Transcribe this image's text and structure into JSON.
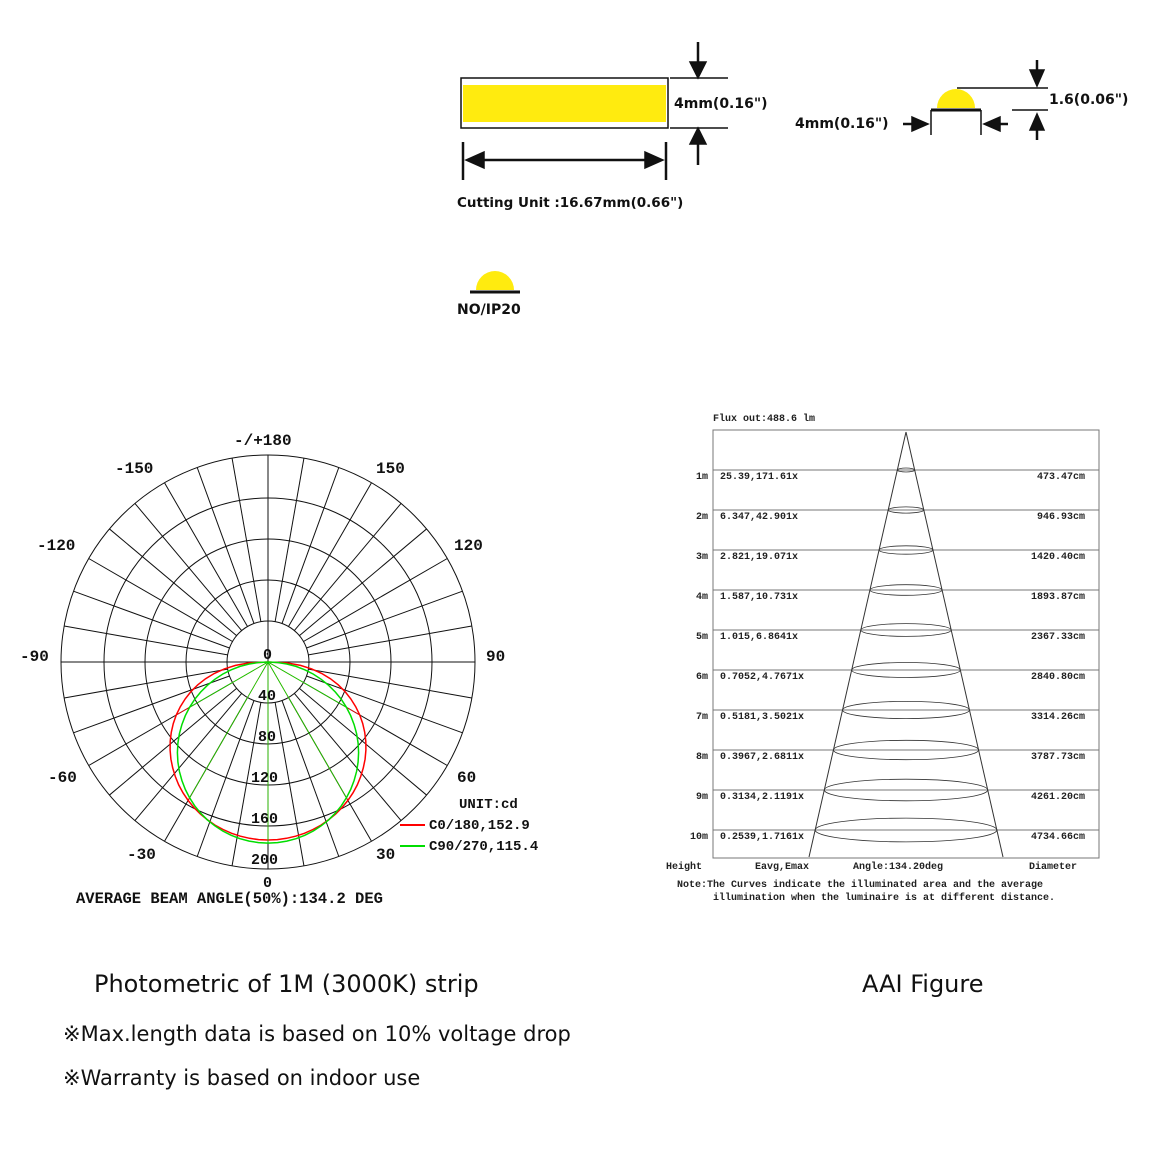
{
  "dimensions": {
    "height_label": "4mm(0.16\")",
    "cutting_unit": "Cutting Unit :16.67mm(0.66\")",
    "width_label": "4mm(0.16\")",
    "thickness_label": "1.6(0.06\")",
    "ip_label": "NO/IP20",
    "strip_color": "#FFEB0F"
  },
  "polar": {
    "angle_labels": {
      "top": "-/+180",
      "m150": "-150",
      "p150": "150",
      "m120": "-120",
      "p120": "120",
      "m90": "-90",
      "p90": "90",
      "m60": "-60",
      "p60": "60",
      "m30": "-30",
      "p30": "30",
      "bottom": "0"
    },
    "radial_labels": [
      "0",
      "40",
      "80",
      "120",
      "160",
      "200"
    ],
    "unit": "UNIT:cd",
    "legend": [
      {
        "label": "C0/180,152.9",
        "color": "#FF0000"
      },
      {
        "label": "C90/270,115.4",
        "color": "#00DD00"
      }
    ],
    "beam_angle": "AVERAGE BEAM ANGLE(50%):134.2 DEG",
    "caption": "Photometric of 1M  (3000K) strip"
  },
  "aai": {
    "flux": "Flux out:488.6 lm",
    "rows": [
      {
        "height": "1m",
        "e": "25.39,171.61x",
        "d": "473.47cm"
      },
      {
        "height": "2m",
        "e": "6.347,42.901x",
        "d": "946.93cm"
      },
      {
        "height": "3m",
        "e": "2.821,19.071x",
        "d": "1420.40cm"
      },
      {
        "height": "4m",
        "e": "1.587,10.731x",
        "d": "1893.87cm"
      },
      {
        "height": "5m",
        "e": "1.015,6.8641x",
        "d": "2367.33cm"
      },
      {
        "height": "6m",
        "e": "0.7052,4.7671x",
        "d": "2840.80cm"
      },
      {
        "height": "7m",
        "e": "0.5181,3.5021x",
        "d": "3314.26cm"
      },
      {
        "height": "8m",
        "e": "0.3967,2.6811x",
        "d": "3787.73cm"
      },
      {
        "height": "9m",
        "e": "0.3134,2.1191x",
        "d": "4261.20cm"
      },
      {
        "height": "10m",
        "e": "0.2539,1.7161x",
        "d": "4734.66cm"
      }
    ],
    "footer": {
      "height": "Height",
      "e": "Eavg,Emax",
      "angle": "Angle:134.20deg",
      "d": "Diameter"
    },
    "note1": "Note:The Curves indicate the illuminated area and the average",
    "note2": "illumination when the luminaire is at different distance.",
    "caption": "AAI Figure"
  },
  "notes": [
    "※Max.length data is based on 10% voltage drop",
    "※Warranty is based on indoor use"
  ]
}
